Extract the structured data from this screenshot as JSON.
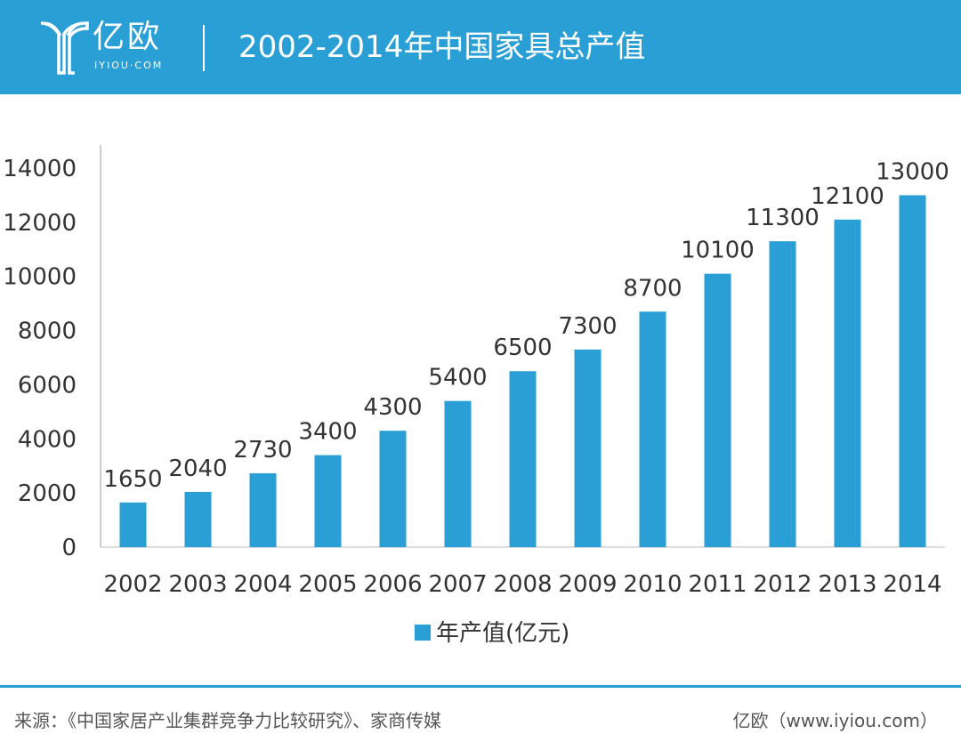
{
  "header": {
    "brand": "亿欧",
    "brand_sub": "IYIOU·COM",
    "title": "2002-2014年中国家具总产值",
    "background_color": "#2a9fd6"
  },
  "chart_data": {
    "type": "bar",
    "categories": [
      "2002",
      "2003",
      "2004",
      "2005",
      "2006",
      "2007",
      "2008",
      "2009",
      "2010",
      "2011",
      "2012",
      "2013",
      "2014"
    ],
    "series": [
      {
        "name": "年产值(亿元)",
        "values": [
          1650,
          2040,
          2730,
          3400,
          4300,
          5400,
          6500,
          7300,
          8700,
          10100,
          11300,
          12100,
          13000
        ],
        "color": "#2a9fd6"
      }
    ],
    "title": "",
    "xlabel": "",
    "ylabel": "",
    "ylim": [
      0,
      14000
    ],
    "yticks": [
      0,
      2000,
      4000,
      6000,
      8000,
      10000,
      12000,
      14000
    ],
    "grid": false,
    "data_labels": true,
    "legend_position": "bottom-center"
  },
  "footer": {
    "source": "来源：《中国家居产业集群竞争力比较研究》、家商传媒",
    "brand": "亿欧（www.iyiou.com）",
    "line_color": "#2a9fd6"
  }
}
